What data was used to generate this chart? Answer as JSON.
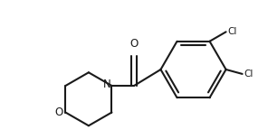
{
  "bg_color": "#ffffff",
  "line_color": "#1a1a1a",
  "lw": 1.5,
  "figsize": [
    2.96,
    1.54
  ],
  "dpi": 100,
  "xlim": [
    0,
    9.0
  ],
  "ylim": [
    0,
    4.7
  ]
}
